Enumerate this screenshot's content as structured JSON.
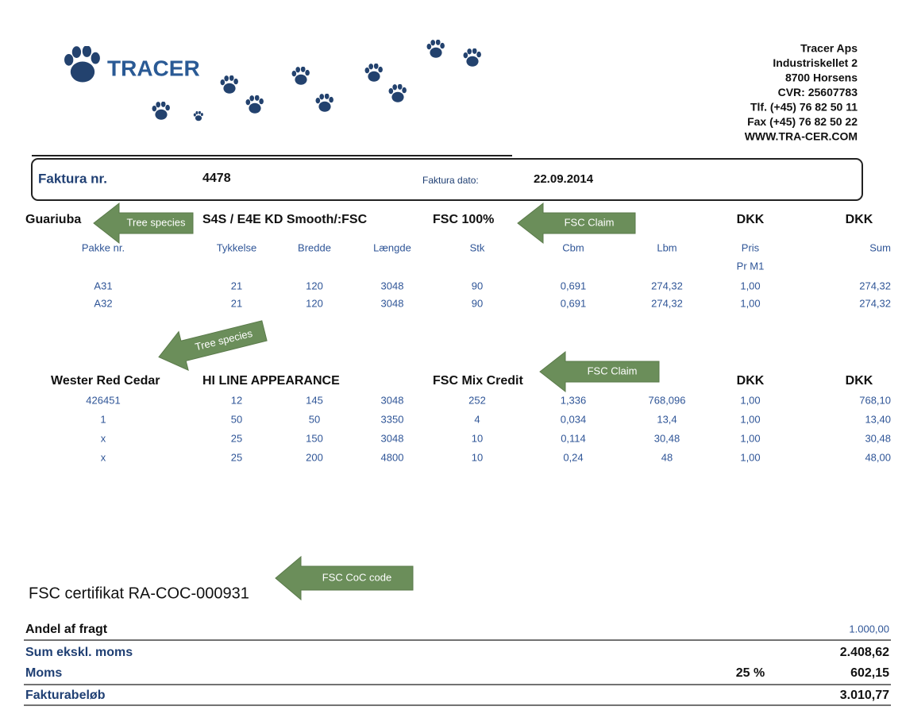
{
  "logo": {
    "name": "TRACER"
  },
  "company": {
    "lines": [
      "Tracer Aps",
      "Industriskellet 2",
      "8700  Horsens",
      "CVR: 25607783",
      "Tlf. (+45) 76 82 50 11",
      "Fax (+45) 76 82 50 22",
      "WWW.TRA-CER.COM"
    ]
  },
  "invoice": {
    "number_label": "Faktura nr.",
    "number": "4478",
    "date_label": "Faktura dato:",
    "date": "22.09.2014"
  },
  "sections": [
    {
      "species": "Guariuba",
      "product": "S4S / E4E KD Smooth/:FSC",
      "claim": "FSC 100%",
      "currency": [
        "DKK",
        "DKK"
      ],
      "columns": [
        "Pakke nr.",
        "Tykkelse",
        "Bredde",
        "Længde",
        "Stk",
        "Cbm",
        "Lbm",
        "Pris",
        "Sum"
      ],
      "column_sub": "Pr M1",
      "rows": [
        [
          "A31",
          "21",
          "120",
          "3048",
          "90",
          "0,691",
          "274,32",
          "1,00",
          "274,32"
        ],
        [
          "A32",
          "21",
          "120",
          "3048",
          "90",
          "0,691",
          "274,32",
          "1,00",
          "274,32"
        ]
      ]
    },
    {
      "species": "Wester Red Cedar",
      "product": "HI LINE APPEARANCE",
      "claim": "FSC Mix Credit",
      "currency": [
        "DKK",
        "DKK"
      ],
      "rows": [
        [
          "426451",
          "12",
          "145",
          "3048",
          "252",
          "1,336",
          "768,096",
          "1,00",
          "768,10"
        ],
        [
          "1",
          "50",
          "50",
          "3350",
          "4",
          "0,034",
          "13,4",
          "1,00",
          "13,40"
        ],
        [
          "x",
          "25",
          "150",
          "3048",
          "10",
          "0,114",
          "30,48",
          "1,00",
          "30,48"
        ],
        [
          "x",
          "25",
          "200",
          "4800",
          "10",
          "0,24",
          "48",
          "1,00",
          "48,00"
        ]
      ]
    }
  ],
  "annotations": [
    "Tree species",
    "FSC Claim",
    "Tree species",
    "FSC Claim",
    "FSC CoC code"
  ],
  "certificate": "FSC certifikat RA-COC-000931",
  "totals": [
    {
      "label": "Andel af fragt",
      "value": "1.000,00"
    },
    {
      "label": "Sum ekskl. moms",
      "value": "2.408,62"
    },
    {
      "label": "Moms",
      "rate": "25 %",
      "value": "602,15"
    },
    {
      "label": "Fakturabeløb",
      "value": "3.010,77"
    }
  ]
}
